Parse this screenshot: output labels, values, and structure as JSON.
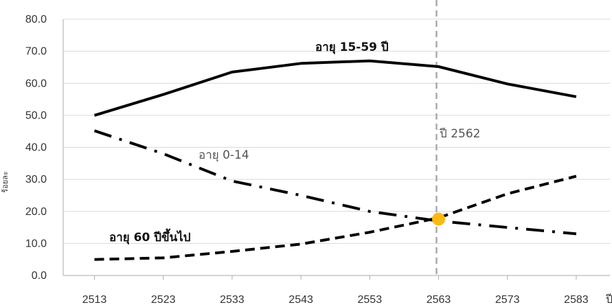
{
  "chart_data": {
    "type": "line",
    "title": "",
    "xlabel": "ปี",
    "ylabel": "ร้อยละ",
    "x": [
      2513,
      2523,
      2533,
      2543,
      2553,
      2563,
      2573,
      2583
    ],
    "x_tick_labels": [
      "2513",
      "2523",
      "2533",
      "2543",
      "2553",
      "2563",
      "2573",
      "2583"
    ],
    "y_tick_labels": [
      "0.0",
      "10.0",
      "20.0",
      "30.0",
      "40.0",
      "50.0",
      "60.0",
      "70.0",
      "80.0"
    ],
    "ylim": [
      0,
      80
    ],
    "grid": "horizontal",
    "legend": "none",
    "series": [
      {
        "name": "อายุ 15-59 ปี",
        "line_style": "solid",
        "color": "#000000",
        "values": [
          50.0,
          56.5,
          63.5,
          66.2,
          67.0,
          65.2,
          59.8,
          55.8
        ]
      },
      {
        "name": "อายุ 0-14",
        "line_style": "dash-dot",
        "color": "#000000",
        "values": [
          45.2,
          38.0,
          29.5,
          25.0,
          20.0,
          17.0,
          15.0,
          13.0
        ]
      },
      {
        "name": "อายุ 60 ปีขึ้นไป",
        "line_style": "dashed",
        "color": "#000000",
        "values": [
          5.0,
          5.5,
          7.5,
          9.8,
          13.5,
          18.0,
          25.5,
          31.0
        ]
      }
    ],
    "annotations": [
      {
        "text": "ปี 2562",
        "x": 2562
      }
    ],
    "marker": {
      "x": 2563,
      "y": 17.6,
      "color": "#FDB913"
    },
    "reference_line": {
      "x": 2562.7,
      "color": "#AAAAAA"
    },
    "grid_color": "#D9D9D9",
    "axis_color": "#AAAAAA"
  }
}
